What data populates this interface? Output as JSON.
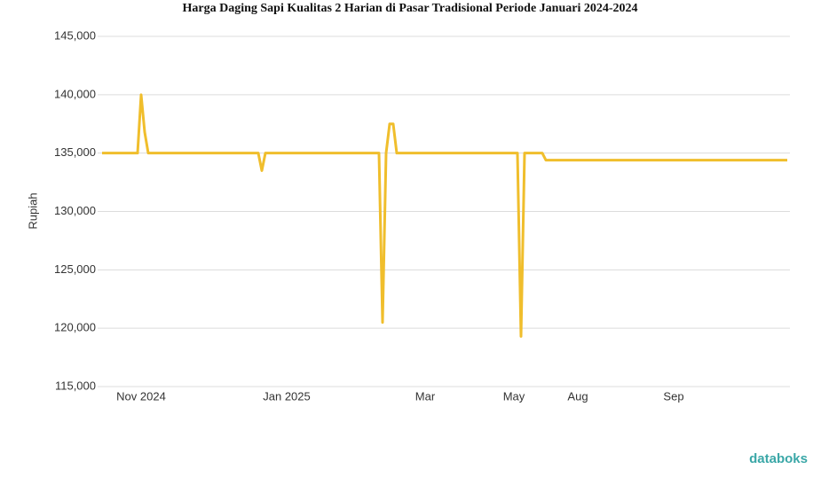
{
  "chart_data": {
    "type": "line",
    "title": "Harga Daging Sapi Kualitas 2 Harian di Pasar Tradisional Periode Januari 2024-2024",
    "y_label": "Rupiah",
    "source_logo": "databoks",
    "ylim": [
      115000,
      145000
    ],
    "yticks": [
      {
        "value": 115000,
        "label": "115,000"
      },
      {
        "value": 120000,
        "label": "120,000"
      },
      {
        "value": 125000,
        "label": "125,000"
      },
      {
        "value": 130000,
        "label": "130,000"
      },
      {
        "value": 135000,
        "label": "135,000"
      },
      {
        "value": 140000,
        "label": "140,000"
      },
      {
        "value": 145000,
        "label": "145,000"
      }
    ],
    "grid": true,
    "categories": [
      null,
      null,
      null,
      null,
      null,
      null,
      null,
      null,
      null,
      null,
      null,
      "Nov 2024",
      null,
      null,
      null,
      null,
      null,
      null,
      null,
      null,
      null,
      null,
      null,
      null,
      null,
      null,
      null,
      null,
      null,
      null,
      null,
      null,
      null,
      null,
      null,
      null,
      null,
      null,
      null,
      null,
      null,
      null,
      null,
      null,
      null,
      null,
      null,
      null,
      null,
      null,
      null,
      null,
      "Jan 2025",
      null,
      null,
      null,
      null,
      null,
      null,
      null,
      null,
      null,
      null,
      null,
      null,
      null,
      null,
      null,
      null,
      null,
      null,
      null,
      null,
      null,
      null,
      null,
      null,
      null,
      null,
      null,
      null,
      null,
      null,
      null,
      null,
      null,
      null,
      null,
      null,
      null,
      null,
      "Mar",
      null,
      null,
      null,
      null,
      null,
      null,
      null,
      null,
      null,
      null,
      null,
      null,
      null,
      null,
      null,
      null,
      null,
      null,
      null,
      null,
      null,
      null,
      null,
      null,
      "May",
      null,
      null,
      null,
      null,
      null,
      null,
      null,
      null,
      null,
      null,
      null,
      null,
      null,
      null,
      null,
      null,
      null,
      "Aug",
      null,
      null,
      null,
      null,
      null,
      null,
      null,
      null,
      null,
      null,
      null,
      null,
      null,
      null,
      null,
      null,
      null,
      null,
      null,
      null,
      null,
      null,
      null,
      null,
      null,
      null,
      "Sep",
      null,
      null,
      null,
      null,
      null,
      null,
      null,
      null,
      null,
      null,
      null,
      null,
      null,
      null,
      null,
      null,
      null,
      null,
      null,
      null,
      null,
      null,
      null,
      null,
      null,
      null,
      null,
      null,
      null,
      null,
      null,
      null
    ],
    "series": [
      {
        "name": "Harga",
        "color": "#f0be2c",
        "values": [
          135000,
          135000,
          135000,
          135000,
          135000,
          135000,
          135000,
          135000,
          135000,
          135000,
          135000,
          140000,
          136800,
          135000,
          135000,
          135000,
          135000,
          135000,
          135000,
          135000,
          135000,
          135000,
          135000,
          135000,
          135000,
          135000,
          135000,
          135000,
          135000,
          135000,
          135000,
          135000,
          135000,
          135000,
          135000,
          135000,
          135000,
          135000,
          135000,
          135000,
          135000,
          135000,
          135000,
          135000,
          135000,
          133500,
          135000,
          135000,
          135000,
          135000,
          135000,
          135000,
          135000,
          135000,
          135000,
          135000,
          135000,
          135000,
          135000,
          135000,
          135000,
          135000,
          135000,
          135000,
          135000,
          135000,
          135000,
          135000,
          135000,
          135000,
          135000,
          135000,
          135000,
          135000,
          135000,
          135000,
          135000,
          135000,
          135000,
          120500,
          135000,
          137500,
          137500,
          135000,
          135000,
          135000,
          135000,
          135000,
          135000,
          135000,
          135000,
          135000,
          135000,
          135000,
          135000,
          135000,
          135000,
          135000,
          135000,
          135000,
          135000,
          135000,
          135000,
          135000,
          135000,
          135000,
          135000,
          135000,
          135000,
          135000,
          135000,
          135000,
          135000,
          135000,
          135000,
          135000,
          135000,
          135000,
          119300,
          135000,
          135000,
          135000,
          135000,
          135000,
          135000,
          134400,
          134400,
          134400,
          134400,
          134400,
          134400,
          134400,
          134400,
          134400,
          134400,
          134400,
          134400,
          134400,
          134400,
          134400,
          134400,
          134400,
          134400,
          134400,
          134400,
          134400,
          134400,
          134400,
          134400,
          134400,
          134400,
          134400,
          134400,
          134400,
          134400,
          134400,
          134400,
          134400,
          134400,
          134400,
          134400,
          134400,
          134400,
          134400,
          134400,
          134400,
          134400,
          134400,
          134400,
          134400,
          134400,
          134400,
          134400,
          134400,
          134400,
          134400,
          134400,
          134400,
          134400,
          134400,
          134400,
          134400,
          134400,
          134400,
          134400,
          134400,
          134400,
          134400,
          134400,
          134400,
          134400,
          134400,
          134400,
          134400
        ]
      }
    ]
  }
}
